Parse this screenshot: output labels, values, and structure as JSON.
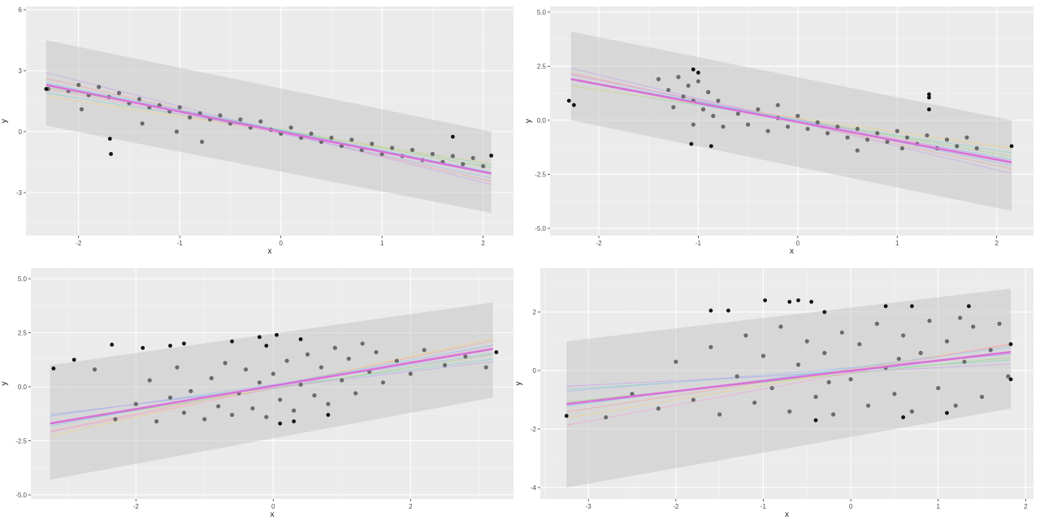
{
  "chart_data": [
    {
      "type": "scatter",
      "xlabel": "x",
      "ylabel": "y",
      "xlim": [
        -2.52,
        2.3
      ],
      "ylim": [
        -5.12,
        6.16
      ],
      "xticks": [
        "-2",
        "-1",
        "0",
        "1",
        "2"
      ],
      "xtick_values": [
        -2,
        -1,
        0,
        1,
        2
      ],
      "yticks": [
        "-3",
        "0",
        "3",
        "6"
      ],
      "ytick_values": [
        -3,
        0,
        3,
        6
      ],
      "grid": true,
      "ribbon": {
        "x": [
          -2.32,
          2.08
        ],
        "lower": [
          0.3,
          -4.0
        ],
        "upper": [
          4.5,
          0.0
        ]
      },
      "fit": {
        "intercept": 0.0,
        "slope": -0.99,
        "x": [
          -2.32,
          2.08
        ]
      },
      "bootstrap_fits": [
        [
          0.05,
          -0.8
        ],
        [
          -0.05,
          -1.15
        ],
        [
          0.1,
          -0.9
        ],
        [
          -0.1,
          -1.05
        ],
        [
          0.0,
          -0.75
        ],
        [
          0.0,
          -1.25
        ],
        [
          0.08,
          -1.0
        ],
        [
          -0.08,
          -0.95
        ]
      ],
      "points": [
        [
          -2.3,
          2.1
        ],
        [
          -2.1,
          2.0
        ],
        [
          -2.0,
          2.3
        ],
        [
          -1.9,
          1.8
        ],
        [
          -1.8,
          2.2
        ],
        [
          -1.7,
          1.7
        ],
        [
          -1.6,
          1.9
        ],
        [
          -1.5,
          1.4
        ],
        [
          -1.4,
          1.6
        ],
        [
          -1.3,
          1.2
        ],
        [
          -1.2,
          1.3
        ],
        [
          -1.1,
          1.0
        ],
        [
          -1.0,
          1.2
        ],
        [
          -0.9,
          0.7
        ],
        [
          -0.8,
          0.9
        ],
        [
          -0.7,
          0.6
        ],
        [
          -0.6,
          0.8
        ],
        [
          -0.5,
          0.4
        ],
        [
          -0.4,
          0.6
        ],
        [
          -0.3,
          0.2
        ],
        [
          -0.2,
          0.5
        ],
        [
          -0.1,
          0.1
        ],
        [
          0,
          -0.1
        ],
        [
          0.1,
          0.2
        ],
        [
          0.2,
          -0.3
        ],
        [
          0.3,
          -0.1
        ],
        [
          0.4,
          -0.5
        ],
        [
          0.5,
          -0.3
        ],
        [
          0.6,
          -0.7
        ],
        [
          0.7,
          -0.4
        ],
        [
          0.8,
          -0.9
        ],
        [
          0.9,
          -0.6
        ],
        [
          1.0,
          -1.1
        ],
        [
          1.1,
          -0.8
        ],
        [
          1.2,
          -1.2
        ],
        [
          1.3,
          -0.9
        ],
        [
          1.4,
          -1.4
        ],
        [
          1.5,
          -1.1
        ],
        [
          1.6,
          -1.5
        ],
        [
          1.7,
          -1.2
        ],
        [
          1.8,
          -1.6
        ],
        [
          1.9,
          -1.3
        ],
        [
          2.0,
          -1.7
        ],
        [
          -1.97,
          1.1
        ],
        [
          -1.37,
          0.4
        ],
        [
          -0.78,
          -0.5
        ],
        [
          -1.03,
          0.0
        ]
      ],
      "outliers": [
        [
          -2.32,
          2.1
        ],
        [
          -1.69,
          -0.35
        ],
        [
          -1.68,
          -1.1
        ],
        [
          2.08,
          -1.18
        ],
        [
          1.7,
          -0.25
        ]
      ]
    },
    {
      "type": "scatter",
      "xlabel": "x",
      "ylabel": "y",
      "xlim": [
        -2.49,
        2.37
      ],
      "ylim": [
        -5.34,
        5.26
      ],
      "xticks": [
        "-2",
        "-1",
        "0",
        "1",
        "2"
      ],
      "xtick_values": [
        -2,
        -1,
        0,
        1,
        2
      ],
      "yticks": [
        "-5.0",
        "-2.5",
        "0.0",
        "2.5",
        "5.0"
      ],
      "ytick_values": [
        -5,
        -2.5,
        0,
        2.5,
        5
      ],
      "grid": true,
      "ribbon": {
        "x": [
          -2.28,
          2.15
        ],
        "lower": [
          0.0,
          -4.2
        ],
        "upper": [
          4.1,
          0.0
        ]
      },
      "fit": {
        "intercept": -0.08,
        "slope": -0.87,
        "x": [
          -2.28,
          2.15
        ]
      },
      "bootstrap_fits": [
        [
          0.0,
          -0.7
        ],
        [
          -0.1,
          -1.0
        ],
        [
          0.05,
          -0.8
        ],
        [
          -0.05,
          -0.95
        ],
        [
          0.1,
          -0.65
        ],
        [
          -0.1,
          -1.1
        ],
        [
          0.0,
          -0.85
        ],
        [
          0.05,
          -0.9
        ]
      ],
      "points": [
        [
          -1.4,
          1.9
        ],
        [
          -1.3,
          1.4
        ],
        [
          -1.2,
          2.0
        ],
        [
          -1.15,
          1.1
        ],
        [
          -1.1,
          1.6
        ],
        [
          -1.05,
          0.9
        ],
        [
          -1.0,
          1.8
        ],
        [
          -0.95,
          0.5
        ],
        [
          -0.9,
          1.3
        ],
        [
          -0.85,
          0.2
        ],
        [
          -0.8,
          0.9
        ],
        [
          -0.75,
          -0.3
        ],
        [
          -1.25,
          0.6
        ],
        [
          -1.05,
          -0.2
        ],
        [
          -0.6,
          0.3
        ],
        [
          -0.5,
          -0.2
        ],
        [
          -0.4,
          0.5
        ],
        [
          -0.3,
          -0.5
        ],
        [
          -0.2,
          0.1
        ],
        [
          -0.1,
          -0.3
        ],
        [
          0.0,
          0.2
        ],
        [
          0.1,
          -0.4
        ],
        [
          0.2,
          -0.1
        ],
        [
          0.3,
          -0.6
        ],
        [
          0.4,
          -0.3
        ],
        [
          0.5,
          -0.8
        ],
        [
          0.6,
          -0.4
        ],
        [
          0.7,
          -0.9
        ],
        [
          0.8,
          -0.6
        ],
        [
          0.9,
          -1.0
        ],
        [
          1.0,
          -0.5
        ],
        [
          1.05,
          -1.3
        ],
        [
          1.1,
          -0.8
        ],
        [
          1.2,
          -1.1
        ],
        [
          1.3,
          -0.7
        ],
        [
          1.4,
          -1.3
        ],
        [
          1.5,
          -0.9
        ],
        [
          1.6,
          -1.2
        ],
        [
          1.7,
          -0.8
        ],
        [
          1.8,
          -1.3
        ],
        [
          -0.2,
          0.7
        ],
        [
          0.6,
          -1.4
        ]
      ],
      "outliers": [
        [
          -2.3,
          0.9
        ],
        [
          -2.25,
          0.7
        ],
        [
          -1.05,
          2.35
        ],
        [
          -1.07,
          -1.1
        ],
        [
          -0.87,
          -1.2
        ],
        [
          1.32,
          1.2
        ],
        [
          1.32,
          0.5
        ],
        [
          1.32,
          1.05
        ],
        [
          2.15,
          -1.2
        ],
        [
          -1.0,
          2.2
        ]
      ]
    },
    {
      "type": "scatter",
      "xlabel": "x",
      "ylabel": "y",
      "xlim": [
        -3.53,
        3.5
      ],
      "ylim": [
        -5.19,
        5.49
      ],
      "xticks": [
        "-2",
        "0",
        "2"
      ],
      "xtick_values": [
        -2,
        0,
        2
      ],
      "yticks": [
        "-5.0",
        "-2.5",
        "0.0",
        "2.5",
        "5.0"
      ],
      "ytick_values": [
        -5,
        -2.5,
        0,
        2.5,
        5
      ],
      "grid": true,
      "ribbon": {
        "x": [
          -3.25,
          3.2
        ],
        "lower": [
          -4.3,
          -0.5
        ],
        "upper": [
          1.0,
          3.9
        ]
      },
      "fit": {
        "intercept": 0.04,
        "slope": 0.535,
        "x": [
          -3.25,
          3.2
        ]
      },
      "bootstrap_fits": [
        [
          0.0,
          0.4
        ],
        [
          0.05,
          0.65
        ],
        [
          -0.1,
          0.5
        ],
        [
          0.1,
          0.45
        ],
        [
          0.0,
          0.7
        ],
        [
          -0.05,
          0.38
        ],
        [
          0.08,
          0.58
        ],
        [
          -0.08,
          0.62
        ]
      ],
      "points": [
        [
          -2.6,
          0.8
        ],
        [
          -2.3,
          -1.5
        ],
        [
          -2.0,
          -0.8
        ],
        [
          -1.8,
          0.3
        ],
        [
          -1.7,
          -1.6
        ],
        [
          -1.5,
          -0.5
        ],
        [
          -1.4,
          0.9
        ],
        [
          -1.3,
          -1.2
        ],
        [
          -1.2,
          -0.2
        ],
        [
          -1.0,
          -1.5
        ],
        [
          -0.9,
          0.4
        ],
        [
          -0.8,
          -0.9
        ],
        [
          -0.7,
          1.1
        ],
        [
          -0.6,
          -1.3
        ],
        [
          -0.5,
          -0.3
        ],
        [
          -0.4,
          0.8
        ],
        [
          -0.3,
          -1.0
        ],
        [
          -0.2,
          0.2
        ],
        [
          -0.1,
          -1.4
        ],
        [
          0.0,
          0.6
        ],
        [
          0.1,
          -0.6
        ],
        [
          0.2,
          1.2
        ],
        [
          0.3,
          -1.1
        ],
        [
          0.4,
          0.1
        ],
        [
          0.5,
          1.5
        ],
        [
          0.6,
          -0.4
        ],
        [
          0.7,
          0.9
        ],
        [
          0.8,
          -0.8
        ],
        [
          0.9,
          1.8
        ],
        [
          1.0,
          0.3
        ],
        [
          1.1,
          1.3
        ],
        [
          1.2,
          -0.3
        ],
        [
          1.3,
          2.0
        ],
        [
          1.4,
          0.7
        ],
        [
          1.5,
          1.6
        ],
        [
          1.6,
          0.2
        ],
        [
          1.8,
          1.2
        ],
        [
          2.0,
          0.6
        ],
        [
          2.2,
          1.7
        ],
        [
          2.5,
          1.0
        ],
        [
          2.8,
          1.4
        ],
        [
          3.1,
          0.9
        ]
      ],
      "outliers": [
        [
          -3.2,
          0.85
        ],
        [
          -2.9,
          1.25
        ],
        [
          -2.35,
          1.95
        ],
        [
          -1.9,
          1.8
        ],
        [
          -1.5,
          1.9
        ],
        [
          -1.3,
          2.0
        ],
        [
          -0.6,
          2.1
        ],
        [
          -0.2,
          2.3
        ],
        [
          0.05,
          2.4
        ],
        [
          0.4,
          2.2
        ],
        [
          0.1,
          -1.7
        ],
        [
          0.3,
          -1.6
        ],
        [
          0.8,
          -1.3
        ],
        [
          3.25,
          1.6
        ],
        [
          -0.1,
          1.9
        ]
      ]
    },
    {
      "type": "scatter",
      "xlabel": "x",
      "ylabel": "y",
      "xlim": [
        -3.55,
        2.09
      ],
      "ylim": [
        -4.39,
        3.5
      ],
      "xticks": [
        "-3",
        "-2",
        "-1",
        "0",
        "1",
        "2"
      ],
      "xtick_values": [
        -3,
        -2,
        -1,
        0,
        1,
        2
      ],
      "yticks": [
        "-4",
        "-2",
        "0",
        "2"
      ],
      "ytick_values": [
        -4,
        -2,
        0,
        2
      ],
      "grid": true,
      "ribbon": {
        "x": [
          -3.25,
          1.83
        ],
        "lower": [
          -4.0,
          -1.3
        ],
        "upper": [
          1.0,
          2.8
        ]
      },
      "fit": {
        "intercept": -0.01,
        "slope": 0.35,
        "x": [
          -3.25,
          1.83
        ]
      },
      "bootstrap_fits": [
        [
          0.0,
          0.2
        ],
        [
          0.05,
          0.45
        ],
        [
          -0.1,
          0.3
        ],
        [
          0.1,
          0.25
        ],
        [
          0.0,
          0.5
        ],
        [
          -0.05,
          0.15
        ],
        [
          0.08,
          0.4
        ],
        [
          -0.08,
          0.55
        ]
      ],
      "points": [
        [
          -2.8,
          -1.6
        ],
        [
          -2.5,
          -0.8
        ],
        [
          -2.2,
          -1.3
        ],
        [
          -2.0,
          0.3
        ],
        [
          -1.8,
          -1.0
        ],
        [
          -1.6,
          0.8
        ],
        [
          -1.5,
          -1.5
        ],
        [
          -1.3,
          -0.2
        ],
        [
          -1.2,
          1.2
        ],
        [
          -1.1,
          -1.1
        ],
        [
          -1.0,
          0.5
        ],
        [
          -0.9,
          -0.6
        ],
        [
          -0.8,
          1.5
        ],
        [
          -0.7,
          -1.4
        ],
        [
          -0.6,
          0.2
        ],
        [
          -0.5,
          1.0
        ],
        [
          -0.4,
          -0.9
        ],
        [
          -0.3,
          0.6
        ],
        [
          -0.2,
          -1.5
        ],
        [
          -0.1,
          1.3
        ],
        [
          0.0,
          -0.3
        ],
        [
          0.1,
          0.9
        ],
        [
          0.2,
          -1.2
        ],
        [
          0.3,
          1.6
        ],
        [
          0.4,
          0.1
        ],
        [
          0.5,
          -0.8
        ],
        [
          0.6,
          1.2
        ],
        [
          0.7,
          -1.4
        ],
        [
          0.8,
          0.6
        ],
        [
          0.9,
          1.7
        ],
        [
          1.0,
          -0.6
        ],
        [
          1.1,
          1.0
        ],
        [
          1.2,
          -1.2
        ],
        [
          1.3,
          0.3
        ],
        [
          1.4,
          1.5
        ],
        [
          1.5,
          -0.9
        ],
        [
          1.6,
          0.7
        ],
        [
          1.7,
          1.6
        ],
        [
          1.8,
          -0.2
        ],
        [
          0.55,
          0.4
        ],
        [
          -0.25,
          -0.4
        ],
        [
          1.25,
          1.8
        ]
      ],
      "outliers": [
        [
          -3.25,
          -1.55
        ],
        [
          -1.6,
          2.05
        ],
        [
          -1.4,
          2.05
        ],
        [
          -0.98,
          2.4
        ],
        [
          -0.7,
          2.35
        ],
        [
          -0.6,
          2.4
        ],
        [
          -0.45,
          2.35
        ],
        [
          -0.3,
          2.0
        ],
        [
          0.4,
          2.2
        ],
        [
          0.7,
          2.2
        ],
        [
          1.35,
          2.2
        ],
        [
          0.6,
          -1.6
        ],
        [
          1.1,
          -1.45
        ],
        [
          1.83,
          0.9
        ],
        [
          1.83,
          -0.3
        ],
        [
          -0.4,
          -1.7
        ]
      ]
    }
  ]
}
